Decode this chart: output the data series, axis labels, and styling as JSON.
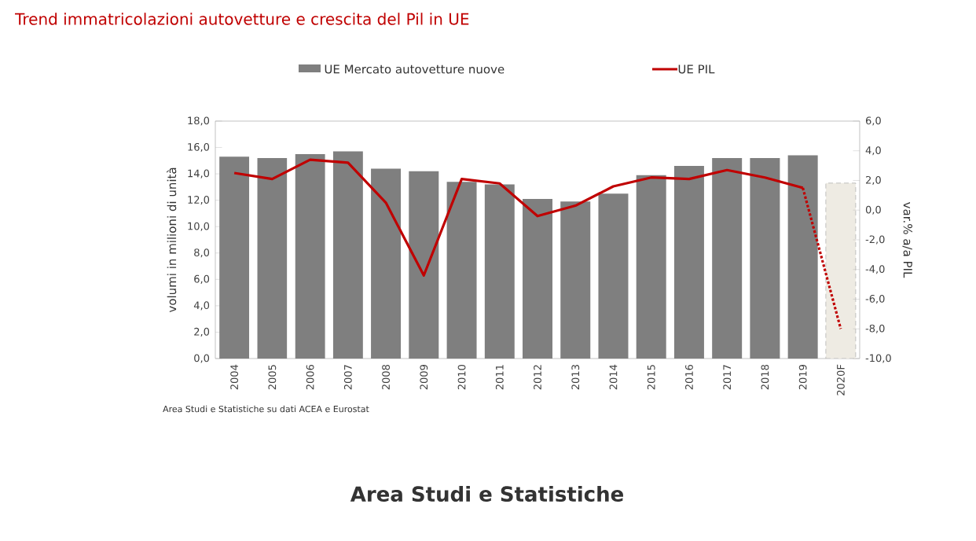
{
  "chart_data": {
    "type": "bar",
    "title": "Trend immatricolazioni autovetture e crescita del Pil in UE",
    "ylabel": "volumi in milioni di unità",
    "y2label": "var.% a/a PIL",
    "categories": [
      "2004",
      "2005",
      "2006",
      "2007",
      "2008",
      "2009",
      "2010",
      "2011",
      "2012",
      "2013",
      "2014",
      "2015",
      "2016",
      "2017",
      "2018",
      "2019",
      "2020F"
    ],
    "series": [
      {
        "name": "UE Mercato autovetture nuove",
        "color": "#7f7f7f",
        "colors": [
          "#7f7f7f",
          "#7f7f7f",
          "#7f7f7f",
          "#7f7f7f",
          "#7f7f7f",
          "#7f7f7f",
          "#7f7f7f",
          "#7f7f7f",
          "#7f7f7f",
          "#7f7f7f",
          "#7f7f7f",
          "#7f7f7f",
          "#7f7f7f",
          "#7f7f7f",
          "#7f7f7f",
          "#7f7f7f",
          "#eeebe3"
        ],
        "values": [
          15.3,
          15.2,
          15.5,
          15.7,
          14.4,
          14.2,
          13.4,
          13.2,
          12.1,
          11.9,
          12.5,
          13.9,
          14.6,
          15.2,
          15.2,
          15.4,
          13.3
        ]
      },
      {
        "name": "UE PIL",
        "type": "line",
        "axis": "y2",
        "color": "#c00000",
        "line_style": "solid",
        "values": [
          2.5,
          2.1,
          3.4,
          3.2,
          0.5,
          -4.4,
          2.1,
          1.8,
          -0.4,
          0.3,
          1.6,
          2.2,
          2.1,
          2.7,
          2.2,
          1.5,
          null
        ]
      },
      {
        "type": "line",
        "axis": "y2",
        "color": "#c00000",
        "line_style": "dotted",
        "values": [
          null,
          null,
          null,
          null,
          null,
          null,
          null,
          null,
          null,
          null,
          null,
          null,
          null,
          null,
          null,
          1.5,
          -8.0
        ]
      }
    ],
    "ylim": [
      0,
      18
    ],
    "yticks": [
      {
        "value": 0,
        "label": "0,0"
      },
      {
        "value": 2,
        "label": "2,0"
      },
      {
        "value": 4,
        "label": "4,0"
      },
      {
        "value": 6,
        "label": "6,0"
      },
      {
        "value": 8,
        "label": "8,0"
      },
      {
        "value": 10,
        "label": "10,0"
      },
      {
        "value": 12,
        "label": "12,0"
      },
      {
        "value": 14,
        "label": "14,0"
      },
      {
        "value": 16,
        "label": "16,0"
      },
      {
        "value": 18,
        "label": "18,0"
      }
    ],
    "y2lim": [
      -10,
      6
    ],
    "y2ticks": [
      {
        "value": -10,
        "label": "-10,0"
      },
      {
        "value": -8,
        "label": "-8,0"
      },
      {
        "value": -6,
        "label": "-6,0"
      },
      {
        "value": -4,
        "label": "-4,0"
      },
      {
        "value": -2,
        "label": "-2,0"
      },
      {
        "value": 0,
        "label": "0,0"
      },
      {
        "value": 2,
        "label": "2,0"
      },
      {
        "value": 4,
        "label": "4,0"
      },
      {
        "value": 6,
        "label": "6,0"
      }
    ],
    "legend": "top",
    "annotations": [
      "Area Studi e Statistiche su dati ACEA e Eurostat",
      "Area Studi e Statistiche"
    ]
  }
}
